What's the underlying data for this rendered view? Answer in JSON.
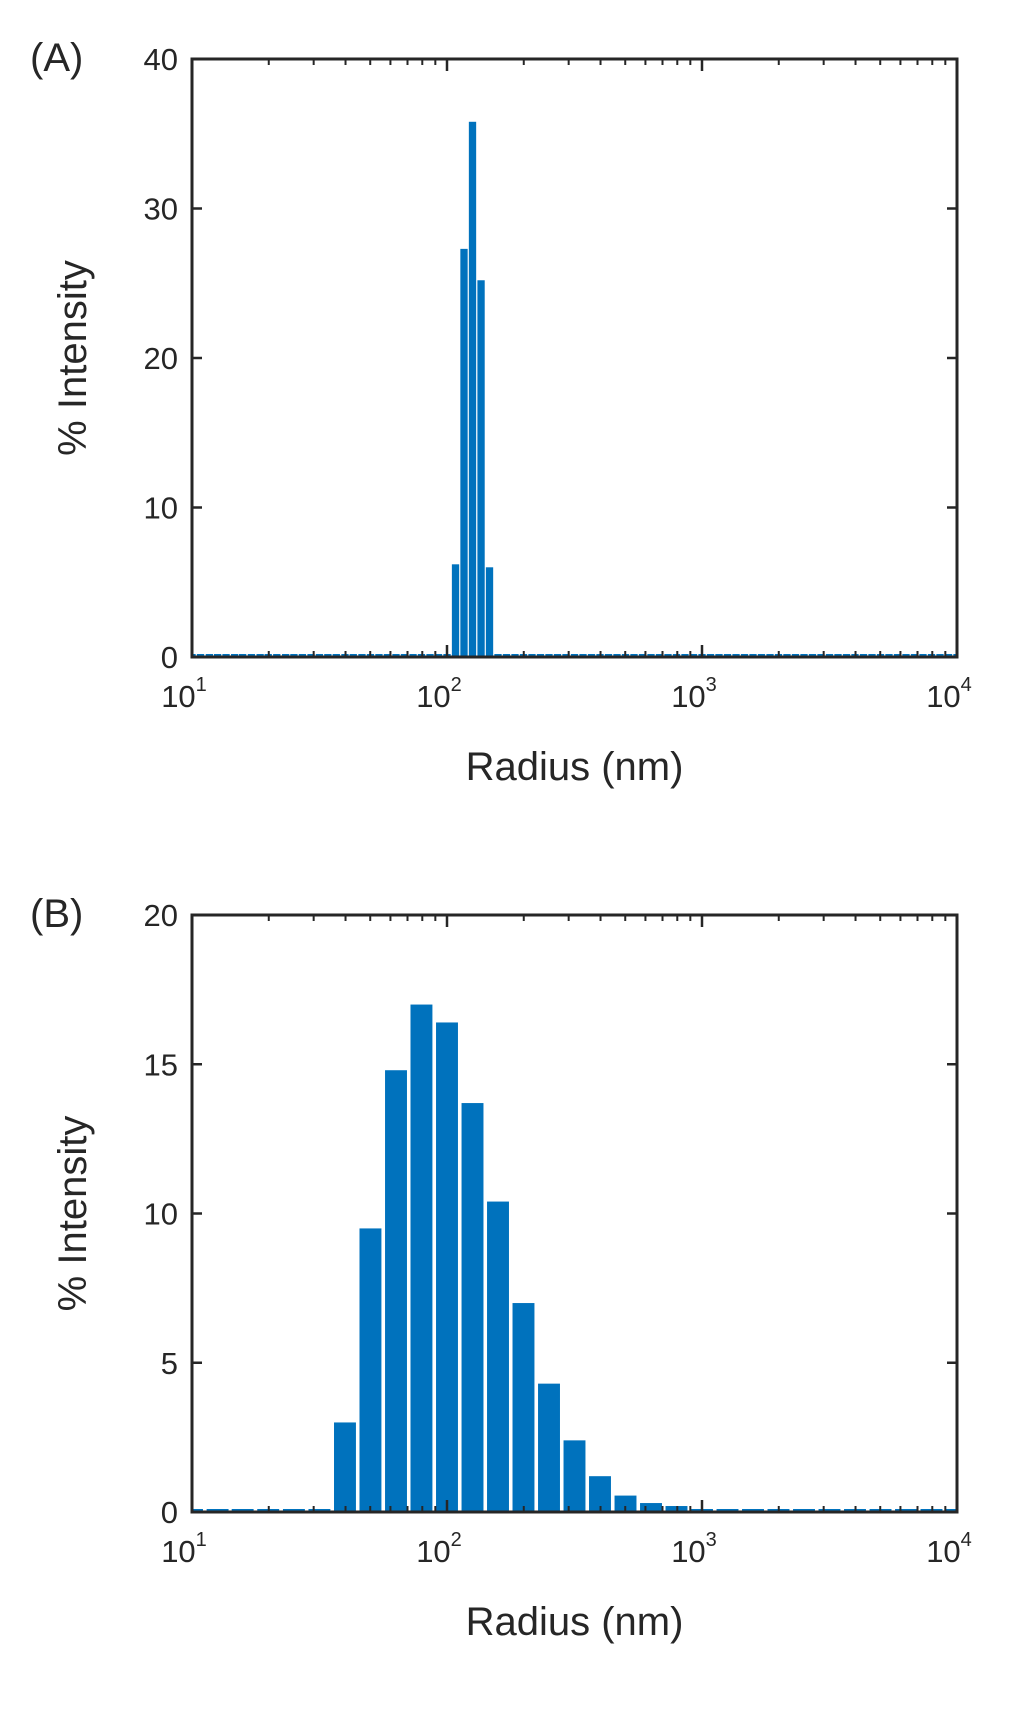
{
  "colors": {
    "bar": "#0072BD",
    "axis": "#262626",
    "background": "#ffffff"
  },
  "chart_data": [
    {
      "panel": "(A)",
      "type": "bar",
      "xscale": "log",
      "xlim": [
        10,
        10000
      ],
      "ylim": [
        0,
        40
      ],
      "xticks": [
        {
          "base": "10",
          "exp": "1"
        },
        {
          "base": "10",
          "exp": "2"
        },
        {
          "base": "10",
          "exp": "3"
        },
        {
          "base": "10",
          "exp": "4"
        }
      ],
      "yticks": [
        "0",
        "10",
        "20",
        "30",
        "40"
      ],
      "xlabel": "Radius (nm)",
      "ylabel": "% Intensity",
      "grid": false,
      "x": [
        10.0,
        10.8,
        11.7,
        12.6,
        13.6,
        14.7,
        15.8,
        17.1,
        18.5,
        19.9,
        21.5,
        23.3,
        25.1,
        27.1,
        29.3,
        31.6,
        34.1,
        36.8,
        39.8,
        42.9,
        46.4,
        50.1,
        54.1,
        58.4,
        63.1,
        68.1,
        73.6,
        79.4,
        85.8,
        92.6,
        100.0,
        108.0,
        116.6,
        125.9,
        136.0,
        146.8,
        158.5,
        171.1,
        184.8,
        199.5,
        215.4,
        232.6,
        251.2,
        271.2,
        292.9,
        316.2,
        341.5,
        368.7,
        398.1,
        429.9,
        464.2,
        501.2,
        541.2,
        584.4,
        631.0,
        681.3,
        735.6,
        794.3,
        857.7,
        926.1,
        1000,
        1080,
        1166,
        1259,
        1360,
        1468,
        1585,
        1711,
        1848,
        1995,
        2154,
        2326,
        2512,
        2712,
        2929,
        3162,
        3415,
        3687,
        3981,
        4299,
        4642,
        5012,
        5412,
        5843,
        6310,
        6813,
        7356,
        7943,
        8577,
        9261,
        10000
      ],
      "values": [
        0,
        0,
        0,
        0,
        0,
        0,
        0,
        0,
        0,
        0,
        0,
        0,
        0,
        0,
        0,
        0,
        0,
        0,
        0,
        0,
        0,
        0,
        0,
        0,
        0,
        0,
        0,
        0,
        0,
        0,
        0,
        6.2,
        27.3,
        35.8,
        25.2,
        6.0,
        0,
        0,
        0,
        0,
        0,
        0,
        0,
        0,
        0,
        0,
        0,
        0,
        0,
        0,
        0,
        0,
        0,
        0,
        0,
        0,
        0,
        0,
        0,
        0,
        0,
        0,
        0,
        0,
        0,
        0,
        0,
        0,
        0,
        0,
        0,
        0,
        0,
        0,
        0,
        0,
        0,
        0,
        0,
        0,
        0,
        0,
        0,
        0,
        0,
        0,
        0,
        0,
        0,
        0,
        0
      ]
    },
    {
      "panel": "(B)",
      "type": "bar",
      "xscale": "log",
      "xlim": [
        10,
        10000
      ],
      "ylim": [
        0,
        20
      ],
      "xticks": [
        {
          "base": "10",
          "exp": "1"
        },
        {
          "base": "10",
          "exp": "2"
        },
        {
          "base": "10",
          "exp": "3"
        },
        {
          "base": "10",
          "exp": "4"
        }
      ],
      "yticks": [
        "0",
        "5",
        "10",
        "15",
        "20"
      ],
      "xlabel": "Radius (nm)",
      "ylabel": "% Intensity",
      "grid": false,
      "x": [
        10.0,
        12.6,
        15.8,
        19.9,
        25.1,
        31.6,
        39.8,
        50.1,
        63.1,
        79.4,
        100.0,
        125.9,
        158.5,
        199.5,
        251.2,
        316.2,
        398.1,
        501.2,
        631.0,
        794.3,
        1000,
        1259,
        1585,
        1995,
        2512,
        3162,
        3981,
        5012,
        6310,
        7943,
        10000
      ],
      "values": [
        0,
        0,
        0,
        0,
        0,
        0,
        3.0,
        9.5,
        14.8,
        17.0,
        16.4,
        13.7,
        10.4,
        7.0,
        4.3,
        2.4,
        1.2,
        0.55,
        0.3,
        0.2,
        0,
        0,
        0,
        0,
        0,
        0,
        0,
        0,
        0,
        0,
        0
      ]
    }
  ]
}
